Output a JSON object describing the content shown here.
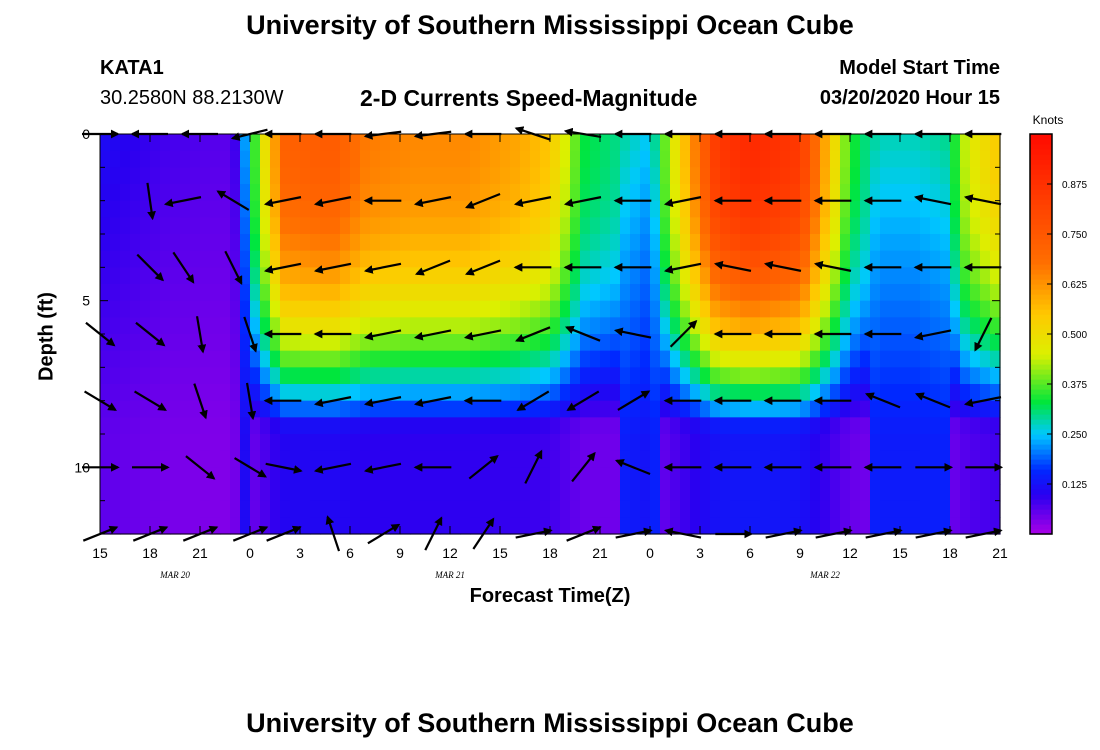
{
  "header": {
    "title": "University of Southern Mississippi Ocean Cube",
    "station_id": "KATA1",
    "station_coords": "30.2580N 88.2130W",
    "chart_title": "2-D Currents Speed-Magnitude",
    "model_start_label": "Model Start Time",
    "model_start_value": "03/20/2020 Hour 15"
  },
  "footer": {
    "title": "University of Southern Mississippi Ocean Cube"
  },
  "chart_data": {
    "type": "heatmap",
    "title": "2-D Currents Speed-Magnitude",
    "xlabel": "Forecast Time(Z)",
    "ylabel": "Depth (ft)",
    "x_tick_labels": [
      "15",
      "18",
      "21",
      "0",
      "3",
      "6",
      "9",
      "12",
      "15",
      "18",
      "21",
      "0",
      "3",
      "6",
      "9",
      "12",
      "15",
      "18",
      "21"
    ],
    "date_labels": [
      {
        "text": "MAR  20",
        "x_hour": 4.5
      },
      {
        "text": "MAR  21",
        "x_hour": 21
      },
      {
        "text": "MAR  22",
        "x_hour": 43.5
      }
    ],
    "x_range_hours": [
      0,
      54
    ],
    "x_unit_note": "hours since 03/20/2020 15Z",
    "y_tick_labels": [
      "0",
      "5",
      "10"
    ],
    "ylim": [
      0,
      12
    ],
    "y_ticks": [
      0,
      5,
      10
    ],
    "colorbar": {
      "title": "Knots",
      "vmin": 0.0,
      "vmax": 1.0,
      "tick_values": [
        0.125,
        0.25,
        0.375,
        0.5,
        0.625,
        0.75,
        0.875
      ],
      "tick_labels": [
        "0.125",
        "0.250",
        "0.375",
        "0.500",
        "0.625",
        "0.750",
        "0.875"
      ]
    },
    "depth_levels_ft": [
      0,
      2,
      4,
      6,
      8,
      10,
      12
    ],
    "speed_time_profile": {
      "times_hours": [
        0,
        4,
        8,
        9,
        11,
        14,
        16,
        19,
        22,
        25,
        27,
        29,
        31,
        33,
        37,
        39,
        42,
        45,
        46,
        47,
        49,
        51,
        52,
        54
      ],
      "surface_knots": [
        0.12,
        0.08,
        0.06,
        0.3,
        0.72,
        0.74,
        0.66,
        0.64,
        0.64,
        0.6,
        0.55,
        0.33,
        0.3,
        0.25,
        0.85,
        0.9,
        0.85,
        0.35,
        0.3,
        0.28,
        0.28,
        0.3,
        0.45,
        0.55
      ]
    },
    "vectors": [
      {
        "t": 0,
        "d": 0,
        "u": 0.1,
        "v": 0.0
      },
      {
        "t": 3,
        "d": 0,
        "u": -0.1,
        "v": 0.0
      },
      {
        "t": 6,
        "d": 0,
        "u": -0.1,
        "v": 0.0
      },
      {
        "t": 9,
        "d": 0,
        "u": -0.4,
        "v": -0.1
      },
      {
        "t": 11,
        "d": 0,
        "u": -0.4,
        "v": 0.0
      },
      {
        "t": 14,
        "d": 0,
        "u": -0.9,
        "v": 0.0
      },
      {
        "t": 17,
        "d": 0,
        "u": -0.8,
        "v": -0.1
      },
      {
        "t": 20,
        "d": 0,
        "u": -0.8,
        "v": -0.1
      },
      {
        "t": 23,
        "d": 0,
        "u": -0.6,
        "v": 0.0
      },
      {
        "t": 26,
        "d": 0,
        "u": -0.6,
        "v": 0.2
      },
      {
        "t": 29,
        "d": 0,
        "u": -0.6,
        "v": 0.1
      },
      {
        "t": 32,
        "d": 0,
        "u": -0.4,
        "v": 0.0
      },
      {
        "t": 35,
        "d": 0,
        "u": -0.4,
        "v": 0.0
      },
      {
        "t": 38,
        "d": 0,
        "u": -0.3,
        "v": 0.0
      },
      {
        "t": 41,
        "d": 0,
        "u": -0.4,
        "v": 0.0
      },
      {
        "t": 44,
        "d": 0,
        "u": -0.4,
        "v": 0.0
      },
      {
        "t": 47,
        "d": 0,
        "u": -0.3,
        "v": 0.0
      },
      {
        "t": 50,
        "d": 0,
        "u": -0.2,
        "v": 0.0
      },
      {
        "t": 53,
        "d": 0,
        "u": -0.2,
        "v": 0.0
      },
      {
        "t": 3,
        "d": 2,
        "u": 0.1,
        "v": -0.7
      },
      {
        "t": 5,
        "d": 2,
        "u": -0.5,
        "v": -0.1
      },
      {
        "t": 8,
        "d": 2,
        "u": -0.5,
        "v": 0.3
      },
      {
        "t": 11,
        "d": 2,
        "u": -0.5,
        "v": -0.1
      },
      {
        "t": 14,
        "d": 2,
        "u": -0.5,
        "v": -0.1
      },
      {
        "t": 17,
        "d": 2,
        "u": -0.5,
        "v": 0.0
      },
      {
        "t": 20,
        "d": 2,
        "u": -0.5,
        "v": -0.1
      },
      {
        "t": 23,
        "d": 2,
        "u": -0.5,
        "v": -0.2
      },
      {
        "t": 26,
        "d": 2,
        "u": -0.5,
        "v": -0.1
      },
      {
        "t": 29,
        "d": 2,
        "u": -0.5,
        "v": -0.1
      },
      {
        "t": 32,
        "d": 2,
        "u": -0.5,
        "v": 0.0
      },
      {
        "t": 35,
        "d": 2,
        "u": -0.5,
        "v": -0.1
      },
      {
        "t": 38,
        "d": 2,
        "u": -0.5,
        "v": 0.0
      },
      {
        "t": 41,
        "d": 2,
        "u": -0.5,
        "v": 0.0
      },
      {
        "t": 44,
        "d": 2,
        "u": -0.5,
        "v": 0.0
      },
      {
        "t": 47,
        "d": 2,
        "u": -0.5,
        "v": 0.0
      },
      {
        "t": 50,
        "d": 2,
        "u": -0.5,
        "v": 0.1
      },
      {
        "t": 53,
        "d": 2,
        "u": -0.5,
        "v": 0.1
      },
      {
        "t": 3,
        "d": 4,
        "u": 0.5,
        "v": -0.5
      },
      {
        "t": 5,
        "d": 4,
        "u": 0.4,
        "v": -0.6
      },
      {
        "t": 8,
        "d": 4,
        "u": 0.3,
        "v": -0.6
      },
      {
        "t": 11,
        "d": 4,
        "u": -0.5,
        "v": -0.1
      },
      {
        "t": 14,
        "d": 4,
        "u": -0.5,
        "v": -0.1
      },
      {
        "t": 17,
        "d": 4,
        "u": -0.5,
        "v": -0.1
      },
      {
        "t": 20,
        "d": 4,
        "u": -0.5,
        "v": -0.2
      },
      {
        "t": 23,
        "d": 4,
        "u": -0.5,
        "v": -0.2
      },
      {
        "t": 26,
        "d": 4,
        "u": -0.5,
        "v": 0.0
      },
      {
        "t": 29,
        "d": 4,
        "u": -0.5,
        "v": 0.0
      },
      {
        "t": 32,
        "d": 4,
        "u": -0.5,
        "v": 0.0
      },
      {
        "t": 35,
        "d": 4,
        "u": -0.5,
        "v": -0.1
      },
      {
        "t": 38,
        "d": 4,
        "u": -0.5,
        "v": 0.1
      },
      {
        "t": 41,
        "d": 4,
        "u": -0.5,
        "v": 0.1
      },
      {
        "t": 44,
        "d": 4,
        "u": -0.5,
        "v": 0.1
      },
      {
        "t": 47,
        "d": 4,
        "u": -0.5,
        "v": 0.0
      },
      {
        "t": 50,
        "d": 4,
        "u": -0.5,
        "v": 0.0
      },
      {
        "t": 53,
        "d": 4,
        "u": -0.5,
        "v": 0.0
      },
      {
        "t": 0,
        "d": 6,
        "u": 0.5,
        "v": -0.4
      },
      {
        "t": 3,
        "d": 6,
        "u": 0.5,
        "v": -0.4
      },
      {
        "t": 6,
        "d": 6,
        "u": 0.1,
        "v": -0.6
      },
      {
        "t": 9,
        "d": 6,
        "u": 0.2,
        "v": -0.6
      },
      {
        "t": 11,
        "d": 6,
        "u": -0.5,
        "v": 0.0
      },
      {
        "t": 14,
        "d": 6,
        "u": -0.5,
        "v": 0.0
      },
      {
        "t": 17,
        "d": 6,
        "u": -0.5,
        "v": -0.1
      },
      {
        "t": 20,
        "d": 6,
        "u": -0.5,
        "v": -0.1
      },
      {
        "t": 23,
        "d": 6,
        "u": -0.5,
        "v": -0.1
      },
      {
        "t": 26,
        "d": 6,
        "u": -0.5,
        "v": -0.2
      },
      {
        "t": 29,
        "d": 6,
        "u": -0.5,
        "v": 0.2
      },
      {
        "t": 32,
        "d": 6,
        "u": -0.5,
        "v": 0.1
      },
      {
        "t": 35,
        "d": 6,
        "u": 0.5,
        "v": 0.5
      },
      {
        "t": 38,
        "d": 6,
        "u": -0.5,
        "v": 0.0
      },
      {
        "t": 41,
        "d": 6,
        "u": -0.5,
        "v": 0.0
      },
      {
        "t": 44,
        "d": 6,
        "u": -0.5,
        "v": 0.0
      },
      {
        "t": 47,
        "d": 6,
        "u": -0.5,
        "v": 0.0
      },
      {
        "t": 50,
        "d": 6,
        "u": -0.5,
        "v": -0.1
      },
      {
        "t": 53,
        "d": 6,
        "u": -0.3,
        "v": -0.6
      },
      {
        "t": 0,
        "d": 8,
        "u": 0.5,
        "v": -0.3
      },
      {
        "t": 3,
        "d": 8,
        "u": 0.5,
        "v": -0.3
      },
      {
        "t": 6,
        "d": 8,
        "u": 0.2,
        "v": -0.6
      },
      {
        "t": 9,
        "d": 8,
        "u": 0.1,
        "v": -0.6
      },
      {
        "t": 11,
        "d": 8,
        "u": -0.5,
        "v": 0.0
      },
      {
        "t": 14,
        "d": 8,
        "u": -0.5,
        "v": -0.1
      },
      {
        "t": 17,
        "d": 8,
        "u": -0.5,
        "v": -0.1
      },
      {
        "t": 20,
        "d": 8,
        "u": -0.5,
        "v": -0.1
      },
      {
        "t": 23,
        "d": 8,
        "u": -0.5,
        "v": 0.0
      },
      {
        "t": 26,
        "d": 8,
        "u": -0.5,
        "v": -0.3
      },
      {
        "t": 29,
        "d": 8,
        "u": -0.5,
        "v": -0.3
      },
      {
        "t": 32,
        "d": 8,
        "u": 0.5,
        "v": 0.3
      },
      {
        "t": 35,
        "d": 8,
        "u": -0.5,
        "v": 0.0
      },
      {
        "t": 38,
        "d": 8,
        "u": -0.5,
        "v": 0.0
      },
      {
        "t": 41,
        "d": 8,
        "u": -0.5,
        "v": 0.0
      },
      {
        "t": 44,
        "d": 8,
        "u": -0.5,
        "v": 0.0
      },
      {
        "t": 47,
        "d": 8,
        "u": -0.5,
        "v": 0.2
      },
      {
        "t": 50,
        "d": 8,
        "u": -0.5,
        "v": 0.2
      },
      {
        "t": 53,
        "d": 8,
        "u": -0.5,
        "v": -0.1
      },
      {
        "t": 0,
        "d": 10,
        "u": 0.5,
        "v": 0.0
      },
      {
        "t": 3,
        "d": 10,
        "u": 0.5,
        "v": 0.0
      },
      {
        "t": 6,
        "d": 10,
        "u": 0.5,
        "v": -0.4
      },
      {
        "t": 9,
        "d": 10,
        "u": 0.5,
        "v": -0.3
      },
      {
        "t": 11,
        "d": 10,
        "u": 0.5,
        "v": -0.1
      },
      {
        "t": 14,
        "d": 10,
        "u": -0.5,
        "v": -0.1
      },
      {
        "t": 17,
        "d": 10,
        "u": -0.5,
        "v": -0.1
      },
      {
        "t": 20,
        "d": 10,
        "u": -0.5,
        "v": 0.0
      },
      {
        "t": 23,
        "d": 10,
        "u": 0.5,
        "v": 0.4
      },
      {
        "t": 26,
        "d": 10,
        "u": 0.3,
        "v": 0.6
      },
      {
        "t": 29,
        "d": 10,
        "u": 0.4,
        "v": 0.5
      },
      {
        "t": 32,
        "d": 10,
        "u": -0.5,
        "v": 0.2
      },
      {
        "t": 35,
        "d": 10,
        "u": -0.5,
        "v": 0.0
      },
      {
        "t": 38,
        "d": 10,
        "u": -0.5,
        "v": 0.0
      },
      {
        "t": 41,
        "d": 10,
        "u": -0.5,
        "v": 0.0
      },
      {
        "t": 44,
        "d": 10,
        "u": -0.5,
        "v": 0.0
      },
      {
        "t": 47,
        "d": 10,
        "u": -0.5,
        "v": 0.0
      },
      {
        "t": 50,
        "d": 10,
        "u": 0.5,
        "v": 0.0
      },
      {
        "t": 53,
        "d": 10,
        "u": 0.5,
        "v": 0.0
      },
      {
        "t": 0,
        "d": 12,
        "u": 0.5,
        "v": 0.2
      },
      {
        "t": 3,
        "d": 12,
        "u": 0.5,
        "v": 0.2
      },
      {
        "t": 6,
        "d": 12,
        "u": 0.5,
        "v": 0.2
      },
      {
        "t": 9,
        "d": 12,
        "u": 0.5,
        "v": 0.2
      },
      {
        "t": 11,
        "d": 12,
        "u": 0.5,
        "v": 0.2
      },
      {
        "t": 14,
        "d": 12,
        "u": -0.2,
        "v": 0.6
      },
      {
        "t": 17,
        "d": 12,
        "u": 0.5,
        "v": 0.3
      },
      {
        "t": 20,
        "d": 12,
        "u": 0.3,
        "v": 0.6
      },
      {
        "t": 23,
        "d": 12,
        "u": 0.4,
        "v": 0.6
      },
      {
        "t": 26,
        "d": 12,
        "u": 0.5,
        "v": 0.1
      },
      {
        "t": 29,
        "d": 12,
        "u": 0.5,
        "v": 0.2
      },
      {
        "t": 32,
        "d": 12,
        "u": 0.5,
        "v": 0.1
      },
      {
        "t": 35,
        "d": 12,
        "u": -0.5,
        "v": 0.1
      },
      {
        "t": 38,
        "d": 12,
        "u": 0.5,
        "v": 0.0
      },
      {
        "t": 41,
        "d": 12,
        "u": 0.5,
        "v": 0.1
      },
      {
        "t": 44,
        "d": 12,
        "u": 0.5,
        "v": 0.1
      },
      {
        "t": 47,
        "d": 12,
        "u": 0.5,
        "v": 0.1
      },
      {
        "t": 50,
        "d": 12,
        "u": 0.5,
        "v": 0.1
      },
      {
        "t": 53,
        "d": 12,
        "u": 0.5,
        "v": 0.1
      }
    ]
  }
}
